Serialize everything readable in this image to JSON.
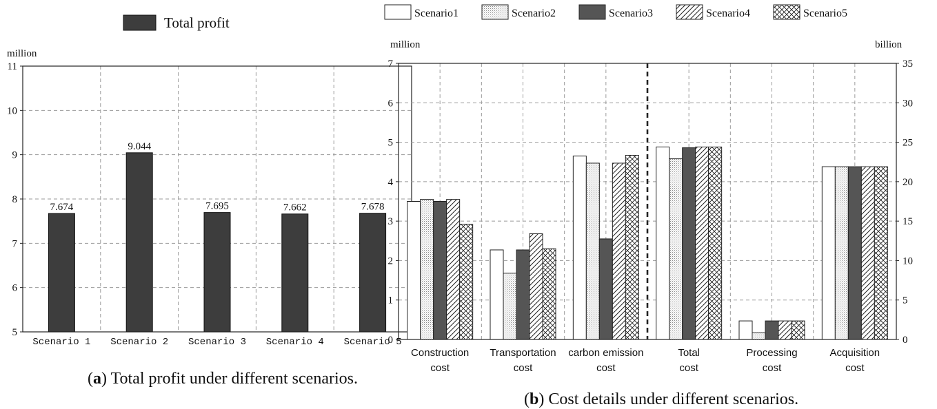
{
  "chart_data": [
    {
      "type": "bar",
      "legend": [
        "Total profit"
      ],
      "legend_position": "top",
      "ylabel": "million",
      "ylim": [
        5,
        11
      ],
      "yticks": [
        5,
        6,
        7,
        8,
        9,
        10,
        11
      ],
      "categories": [
        "Scenario 1",
        "Scenario 2",
        "Scenario 3",
        "Scenario 4",
        "Scenario 5"
      ],
      "series": [
        {
          "name": "Total profit",
          "values": [
            7.674,
            9.044,
            7.695,
            7.662,
            7.678
          ]
        }
      ],
      "data_labels": [
        "7.674",
        "9.044",
        "7.695",
        "7.662",
        "7.678"
      ],
      "grid": true,
      "bar_color": "#3d3d3d",
      "caption": {
        "letter": "a",
        "text": ") Total profit under different scenarios."
      }
    },
    {
      "type": "bar",
      "legend": [
        "Scenario1",
        "Scenario2",
        "Scenario3",
        "Scenario4",
        "Scenario5"
      ],
      "legend_position": "top",
      "ylabel": "million",
      "ylabel_right": "billion",
      "ylim": [
        0,
        7
      ],
      "yticks": [
        0,
        1,
        2,
        3,
        4,
        5,
        6,
        7
      ],
      "ylim_right": [
        0,
        35
      ],
      "yticks_right": [
        0,
        5,
        10,
        15,
        20,
        25,
        30,
        35
      ],
      "categories": [
        [
          "Construction",
          "cost"
        ],
        [
          "Transportation",
          "cost"
        ],
        [
          "carbon emission",
          "cost"
        ],
        [
          "Total",
          "cost"
        ],
        [
          "Processing",
          "cost"
        ],
        [
          "Acquisition",
          "cost"
        ]
      ],
      "axis_assignment": [
        "left",
        "left",
        "left",
        "right",
        "right",
        "right"
      ],
      "series": [
        {
          "name": "Scenario1",
          "pattern": "white",
          "values": [
            3.5,
            2.27,
            4.65,
            24.4,
            2.35,
            21.9
          ]
        },
        {
          "name": "Scenario2",
          "pattern": "dots",
          "values": [
            3.55,
            1.68,
            4.47,
            22.9,
            0.85,
            21.9
          ]
        },
        {
          "name": "Scenario3",
          "pattern": "dark",
          "values": [
            3.5,
            2.27,
            2.55,
            24.3,
            2.35,
            21.9
          ]
        },
        {
          "name": "Scenario4",
          "pattern": "diagonal",
          "values": [
            3.55,
            2.68,
            4.47,
            24.4,
            2.35,
            21.9
          ]
        },
        {
          "name": "Scenario5",
          "pattern": "crosshatch",
          "values": [
            2.92,
            2.3,
            4.67,
            24.4,
            2.35,
            21.9
          ]
        }
      ],
      "grid": true,
      "divider_after_category": 2,
      "caption": {
        "letter": "b",
        "text": ") Cost details under different scenarios."
      }
    }
  ]
}
